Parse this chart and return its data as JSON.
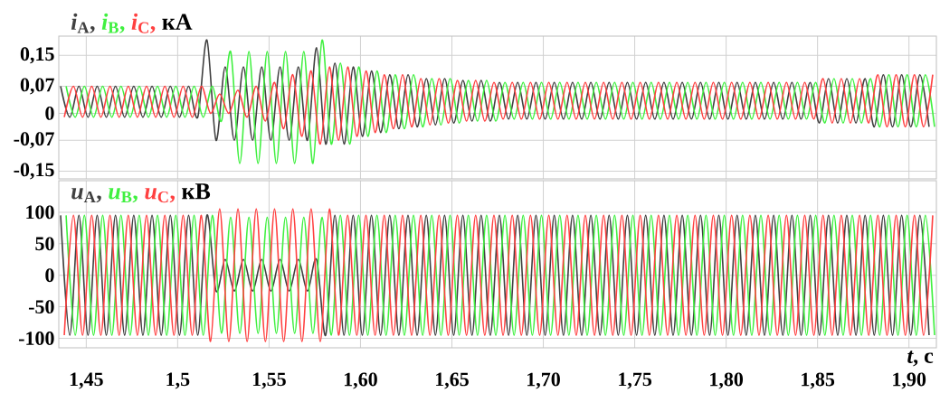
{
  "chart_data": [
    {
      "type": "line",
      "ylabel": "кА",
      "legend": "top left",
      "grid": true,
      "tick_labels": "y",
      "xlim": [
        1.435,
        1.915
      ],
      "ylim": [
        -0.17,
        0.2
      ],
      "xticks": [
        {
          "value": 1.45,
          "label": null
        },
        {
          "value": 1.5,
          "label": null
        },
        {
          "value": 1.55,
          "label": null
        },
        {
          "value": 1.6,
          "label": null
        },
        {
          "value": 1.65,
          "label": null
        },
        {
          "value": 1.7,
          "label": null
        },
        {
          "value": 1.75,
          "label": null
        },
        {
          "value": 1.8,
          "label": null
        },
        {
          "value": 1.85,
          "label": null
        },
        {
          "value": 1.9,
          "label": null
        }
      ],
      "yticks": [
        {
          "value": 0.15,
          "label": "0,15"
        },
        {
          "value": 0.07,
          "label": "0,07"
        },
        0,
        {
          "value": -0.07,
          "label": "-0,07"
        },
        {
          "value": -0.15,
          "label": "-0,15"
        }
      ],
      "series": [
        {
          "name": "*i*$_{А}$,",
          "color": "#404040",
          "x": [
            1.436,
            1.441,
            1.446,
            1.451,
            1.456,
            1.461,
            1.466,
            1.471,
            1.476,
            1.481,
            1.486,
            1.491,
            1.496,
            1.501,
            1.506,
            1.511,
            1.516,
            1.521,
            1.526,
            1.531,
            1.536,
            1.541,
            1.546,
            1.551,
            1.556,
            1.561,
            1.566,
            1.571,
            1.576,
            1.581,
            1.586,
            1.591,
            1.596,
            1.601,
            1.606,
            1.611,
            1.616,
            1.621,
            1.626,
            1.631,
            1.636,
            1.641,
            1.646,
            1.651,
            1.656,
            1.661,
            1.666,
            1.671,
            1.676,
            1.681,
            1.686,
            1.691,
            1.696,
            1.701,
            1.706,
            1.711,
            1.716,
            1.721,
            1.726,
            1.731,
            1.736,
            1.741,
            1.746,
            1.751,
            1.756,
            1.761,
            1.766,
            1.771,
            1.776,
            1.781,
            1.786,
            1.791,
            1.796,
            1.801,
            1.806,
            1.811,
            1.816,
            1.821,
            1.826,
            1.831,
            1.836,
            1.841,
            1.846,
            1.851,
            1.856,
            1.861,
            1.866,
            1.871,
            1.876,
            1.881,
            1.886,
            1.891,
            1.896,
            1.901,
            1.906,
            1.911
          ],
          "values": [
            0.07,
            -0.01,
            0.07,
            -0.01,
            0.07,
            -0.01,
            0.07,
            -0.01,
            0.07,
            -0.01,
            0.07,
            -0.01,
            0.07,
            -0.01,
            0.07,
            -0.01,
            0.19,
            -0.07,
            0.12,
            -0.07,
            0.12,
            -0.07,
            0.12,
            -0.07,
            0.12,
            -0.07,
            0.12,
            -0.07,
            0.17,
            -0.08,
            0.13,
            -0.08,
            0.12,
            -0.06,
            0.11,
            -0.05,
            0.1,
            -0.04,
            0.1,
            -0.035,
            0.09,
            -0.03,
            0.09,
            -0.025,
            0.085,
            -0.02,
            0.085,
            -0.02,
            0.08,
            -0.015,
            0.08,
            -0.015,
            0.08,
            -0.015,
            0.08,
            -0.015,
            0.08,
            -0.015,
            0.08,
            -0.015,
            0.08,
            -0.015,
            0.08,
            -0.015,
            0.08,
            -0.015,
            0.08,
            -0.015,
            0.08,
            -0.015,
            0.08,
            -0.015,
            0.08,
            -0.015,
            0.08,
            -0.015,
            0.08,
            -0.015,
            0.08,
            -0.015,
            0.08,
            -0.015,
            0.08,
            -0.025,
            0.09,
            -0.025,
            0.09,
            -0.025,
            0.09,
            -0.035,
            0.1,
            -0.035,
            0.1,
            -0.035,
            0.1,
            -0.035
          ]
        },
        {
          "name": "*i*$_{В}$,",
          "color": "#40f040",
          "x": [
            1.439,
            1.444,
            1.449,
            1.454,
            1.459,
            1.464,
            1.469,
            1.474,
            1.479,
            1.484,
            1.489,
            1.494,
            1.499,
            1.504,
            1.509,
            1.514,
            1.519,
            1.524,
            1.529,
            1.534,
            1.539,
            1.544,
            1.549,
            1.554,
            1.559,
            1.564,
            1.569,
            1.574,
            1.579,
            1.584,
            1.589,
            1.594,
            1.599,
            1.604,
            1.609,
            1.614,
            1.619,
            1.624,
            1.629,
            1.634,
            1.639,
            1.644,
            1.649,
            1.654,
            1.659,
            1.664,
            1.669,
            1.674,
            1.679,
            1.684,
            1.689,
            1.694,
            1.699,
            1.704,
            1.709,
            1.714,
            1.719,
            1.724,
            1.729,
            1.734,
            1.739,
            1.744,
            1.749,
            1.754,
            1.759,
            1.764,
            1.769,
            1.774,
            1.779,
            1.784,
            1.789,
            1.794,
            1.799,
            1.804,
            1.809,
            1.814,
            1.819,
            1.824,
            1.829,
            1.834,
            1.839,
            1.844,
            1.849,
            1.854,
            1.859,
            1.864,
            1.869,
            1.874,
            1.879,
            1.884,
            1.889,
            1.894,
            1.899,
            1.904,
            1.909,
            1.914
          ],
          "values": [
            0.07,
            -0.01,
            0.07,
            -0.01,
            0.07,
            -0.01,
            0.07,
            -0.01,
            0.07,
            -0.01,
            0.07,
            -0.01,
            0.07,
            -0.01,
            0.07,
            -0.01,
            0.07,
            -0.02,
            0.16,
            -0.13,
            0.16,
            -0.13,
            0.16,
            -0.13,
            0.16,
            -0.13,
            0.16,
            -0.13,
            0.19,
            -0.08,
            0.13,
            -0.08,
            0.12,
            -0.06,
            0.11,
            -0.05,
            0.1,
            -0.04,
            0.1,
            -0.035,
            0.09,
            -0.03,
            0.09,
            -0.025,
            0.085,
            -0.02,
            0.085,
            -0.02,
            0.08,
            -0.015,
            0.08,
            -0.015,
            0.08,
            -0.015,
            0.08,
            -0.015,
            0.08,
            -0.015,
            0.08,
            -0.015,
            0.08,
            -0.015,
            0.08,
            -0.015,
            0.08,
            -0.015,
            0.08,
            -0.015,
            0.08,
            -0.015,
            0.08,
            -0.015,
            0.08,
            -0.015,
            0.08,
            -0.015,
            0.08,
            -0.015,
            0.08,
            -0.015,
            0.08,
            -0.015,
            0.08,
            -0.025,
            0.09,
            -0.025,
            0.09,
            -0.025,
            0.09,
            -0.035,
            0.1,
            -0.035,
            0.1,
            -0.035,
            0.1,
            -0.035
          ]
        },
        {
          "name": "*i*$_{С}$,",
          "color": "#ff4040",
          "x": [
            1.438,
            1.443,
            1.448,
            1.453,
            1.458,
            1.463,
            1.468,
            1.473,
            1.478,
            1.483,
            1.488,
            1.493,
            1.498,
            1.503,
            1.508,
            1.513,
            1.518,
            1.523,
            1.528,
            1.533,
            1.538,
            1.543,
            1.548,
            1.553,
            1.558,
            1.563,
            1.568,
            1.573,
            1.578,
            1.583,
            1.588,
            1.593,
            1.598,
            1.603,
            1.608,
            1.613,
            1.618,
            1.623,
            1.628,
            1.633,
            1.638,
            1.643,
            1.648,
            1.653,
            1.658,
            1.663,
            1.668,
            1.673,
            1.678,
            1.683,
            1.688,
            1.693,
            1.698,
            1.703,
            1.708,
            1.713,
            1.718,
            1.723,
            1.728,
            1.733,
            1.738,
            1.743,
            1.748,
            1.753,
            1.758,
            1.763,
            1.768,
            1.773,
            1.778,
            1.783,
            1.788,
            1.793,
            1.798,
            1.803,
            1.808,
            1.813,
            1.818,
            1.823,
            1.828,
            1.833,
            1.838,
            1.843,
            1.848,
            1.853,
            1.858,
            1.863,
            1.868,
            1.873,
            1.878,
            1.883,
            1.888,
            1.893,
            1.898,
            1.903,
            1.908,
            1.913
          ],
          "values": [
            -0.01,
            0.07,
            -0.01,
            0.07,
            -0.01,
            0.07,
            -0.01,
            0.07,
            -0.01,
            0.07,
            -0.01,
            0.07,
            -0.01,
            0.07,
            -0.01,
            0.07,
            0,
            0.05,
            0,
            0.06,
            -0.01,
            0.07,
            -0.02,
            0.08,
            -0.04,
            0.1,
            -0.06,
            0.11,
            -0.08,
            0.12,
            -0.07,
            0.12,
            -0.06,
            0.11,
            -0.05,
            0.1,
            -0.04,
            0.1,
            -0.035,
            0.09,
            -0.03,
            0.09,
            -0.025,
            0.085,
            -0.02,
            0.085,
            -0.02,
            0.08,
            -0.015,
            0.08,
            -0.015,
            0.08,
            -0.015,
            0.08,
            -0.015,
            0.08,
            -0.015,
            0.08,
            -0.015,
            0.08,
            -0.015,
            0.08,
            -0.015,
            0.08,
            -0.015,
            0.08,
            -0.015,
            0.08,
            -0.015,
            0.08,
            -0.015,
            0.08,
            -0.015,
            0.08,
            -0.015,
            0.08,
            -0.015,
            0.08,
            -0.015,
            0.08,
            -0.015,
            0.08,
            -0.015,
            0.09,
            -0.025,
            0.09,
            -0.025,
            0.09,
            -0.025,
            0.1,
            -0.035,
            0.1,
            -0.035,
            0.1,
            -0.035,
            0.1
          ]
        }
      ]
    },
    {
      "type": "line",
      "ylabel": "кВ",
      "xlabel": "*t*, с",
      "legend": "top left",
      "grid": true,
      "xlim": [
        1.435,
        1.915
      ],
      "ylim": [
        -115,
        150
      ],
      "xticks": [
        {
          "value": 1.45,
          "label": "1,45"
        },
        {
          "value": 1.5,
          "label": "1,5"
        },
        {
          "value": 1.55,
          "label": "1,55"
        },
        {
          "value": 1.6,
          "label": "1,60"
        },
        {
          "value": 1.65,
          "label": "1,65"
        },
        {
          "value": 1.7,
          "label": "1,70"
        },
        {
          "value": 1.75,
          "label": "1,75"
        },
        {
          "value": 1.8,
          "label": "1,80"
        },
        {
          "value": 1.85,
          "label": "1,85"
        },
        {
          "value": 1.9,
          "label": "1,90"
        }
      ],
      "yticks": [
        100,
        50,
        0,
        -50,
        -100
      ],
      "series": [
        {
          "name": "*u*$_{А}$,",
          "color": "#404040",
          "x": [
            1.436,
            1.441,
            1.446,
            1.451,
            1.456,
            1.461,
            1.466,
            1.471,
            1.476,
            1.481,
            1.486,
            1.491,
            1.496,
            1.501,
            1.506,
            1.511,
            1.516,
            1.521,
            1.526,
            1.531,
            1.536,
            1.541,
            1.546,
            1.551,
            1.556,
            1.561,
            1.566,
            1.571,
            1.576,
            1.581,
            1.586,
            1.591,
            1.596,
            1.601,
            1.606,
            1.611,
            1.616,
            1.621,
            1.626,
            1.631,
            1.636,
            1.641,
            1.646,
            1.651,
            1.656,
            1.661,
            1.666,
            1.671,
            1.676,
            1.681,
            1.686,
            1.691,
            1.696,
            1.701,
            1.706,
            1.711,
            1.716,
            1.721,
            1.726,
            1.731,
            1.736,
            1.741,
            1.746,
            1.751,
            1.756,
            1.761,
            1.766,
            1.771,
            1.776,
            1.781,
            1.786,
            1.791,
            1.796,
            1.801,
            1.806,
            1.811,
            1.816,
            1.821,
            1.826,
            1.831,
            1.836,
            1.841,
            1.846,
            1.851,
            1.856,
            1.861,
            1.866,
            1.871,
            1.876,
            1.881,
            1.886,
            1.891,
            1.896,
            1.901,
            1.906,
            1.911
          ],
          "values": [
            95,
            -95,
            95,
            -95,
            95,
            -95,
            95,
            -95,
            95,
            -95,
            95,
            -95,
            95,
            -95,
            95,
            -95,
            95,
            -25,
            25,
            -25,
            25,
            -25,
            25,
            -25,
            25,
            -25,
            25,
            -25,
            25,
            -95,
            95,
            -95,
            95,
            -95,
            95,
            -95,
            95,
            -95,
            95,
            -95,
            95,
            -95,
            95,
            -95,
            95,
            -95,
            95,
            -95,
            95,
            -95,
            95,
            -95,
            95,
            -95,
            95,
            -95,
            95,
            -95,
            95,
            -95,
            95,
            -95,
            95,
            -95,
            95,
            -95,
            95,
            -95,
            95,
            -95,
            95,
            -95,
            95,
            -95,
            95,
            -95,
            95,
            -95,
            95,
            -95,
            95,
            -95,
            95,
            -95,
            95,
            -95,
            95,
            -95,
            95,
            -95,
            95,
            -95,
            95,
            -95,
            95,
            -95
          ]
        },
        {
          "name": "*u*$_{В}$,",
          "color": "#40f040",
          "x": [
            1.439,
            1.444,
            1.449,
            1.454,
            1.459,
            1.464,
            1.469,
            1.474,
            1.479,
            1.484,
            1.489,
            1.494,
            1.499,
            1.504,
            1.509,
            1.514,
            1.519,
            1.524,
            1.529,
            1.534,
            1.539,
            1.544,
            1.549,
            1.554,
            1.559,
            1.564,
            1.569,
            1.574,
            1.579,
            1.584,
            1.589,
            1.594,
            1.599,
            1.604,
            1.609,
            1.614,
            1.619,
            1.624,
            1.629,
            1.634,
            1.639,
            1.644,
            1.649,
            1.654,
            1.659,
            1.664,
            1.669,
            1.674,
            1.679,
            1.684,
            1.689,
            1.694,
            1.699,
            1.704,
            1.709,
            1.714,
            1.719,
            1.724,
            1.729,
            1.734,
            1.739,
            1.744,
            1.749,
            1.754,
            1.759,
            1.764,
            1.769,
            1.774,
            1.779,
            1.784,
            1.789,
            1.794,
            1.799,
            1.804,
            1.809,
            1.814,
            1.819,
            1.824,
            1.829,
            1.834,
            1.839,
            1.844,
            1.849,
            1.854,
            1.859,
            1.864,
            1.869,
            1.874,
            1.879,
            1.884,
            1.889,
            1.894,
            1.899,
            1.904,
            1.909,
            1.914
          ],
          "values": [
            95,
            -95,
            95,
            -95,
            95,
            -95,
            95,
            -95,
            95,
            -95,
            95,
            -95,
            95,
            -95,
            95,
            -95,
            95,
            -92,
            92,
            -92,
            92,
            -92,
            92,
            -92,
            92,
            -92,
            92,
            -92,
            92,
            -95,
            95,
            -95,
            95,
            -95,
            95,
            -95,
            95,
            -95,
            95,
            -95,
            95,
            -95,
            95,
            -95,
            95,
            -95,
            95,
            -95,
            95,
            -95,
            95,
            -95,
            95,
            -95,
            95,
            -95,
            95,
            -95,
            95,
            -95,
            95,
            -95,
            95,
            -95,
            95,
            -95,
            95,
            -95,
            95,
            -95,
            95,
            -95,
            95,
            -95,
            95,
            -95,
            95,
            -95,
            95,
            -95,
            95,
            -95,
            95,
            -95,
            95,
            -95,
            95,
            -95,
            95,
            -95,
            95,
            -95,
            95,
            -95,
            95,
            -95
          ]
        },
        {
          "name": "*u*$_{С}$,",
          "color": "#ff4040",
          "x": [
            1.438,
            1.443,
            1.448,
            1.453,
            1.458,
            1.463,
            1.468,
            1.473,
            1.478,
            1.483,
            1.488,
            1.493,
            1.498,
            1.503,
            1.508,
            1.513,
            1.518,
            1.523,
            1.528,
            1.533,
            1.538,
            1.543,
            1.548,
            1.553,
            1.558,
            1.563,
            1.568,
            1.573,
            1.578,
            1.583,
            1.588,
            1.593,
            1.598,
            1.603,
            1.608,
            1.613,
            1.618,
            1.623,
            1.628,
            1.633,
            1.638,
            1.643,
            1.648,
            1.653,
            1.658,
            1.663,
            1.668,
            1.673,
            1.678,
            1.683,
            1.688,
            1.693,
            1.698,
            1.703,
            1.708,
            1.713,
            1.718,
            1.723,
            1.728,
            1.733,
            1.738,
            1.743,
            1.748,
            1.753,
            1.758,
            1.763,
            1.768,
            1.773,
            1.778,
            1.783,
            1.788,
            1.793,
            1.798,
            1.803,
            1.808,
            1.813,
            1.818,
            1.823,
            1.828,
            1.833,
            1.838,
            1.843,
            1.848,
            1.853,
            1.858,
            1.863,
            1.868,
            1.873,
            1.878,
            1.883,
            1.888,
            1.893,
            1.898,
            1.903,
            1.908,
            1.913
          ],
          "values": [
            -95,
            95,
            -95,
            95,
            -95,
            95,
            -95,
            95,
            -95,
            95,
            -95,
            95,
            -95,
            95,
            -95,
            95,
            -105,
            105,
            -105,
            105,
            -105,
            105,
            -105,
            105,
            -105,
            105,
            -105,
            105,
            -105,
            105,
            -95,
            95,
            -95,
            95,
            -95,
            95,
            -95,
            95,
            -95,
            95,
            -95,
            95,
            -95,
            95,
            -95,
            95,
            -95,
            95,
            -95,
            95,
            -95,
            95,
            -95,
            95,
            -95,
            95,
            -95,
            95,
            -95,
            95,
            -95,
            95,
            -95,
            95,
            -95,
            95,
            -95,
            95,
            -95,
            95,
            -95,
            95,
            -95,
            95,
            -95,
            95,
            -95,
            95,
            -95,
            95,
            -95,
            95,
            -95,
            95,
            -95,
            95,
            -95,
            95,
            -95,
            95,
            -95,
            95,
            -95,
            95,
            -95,
            95
          ]
        }
      ]
    }
  ]
}
